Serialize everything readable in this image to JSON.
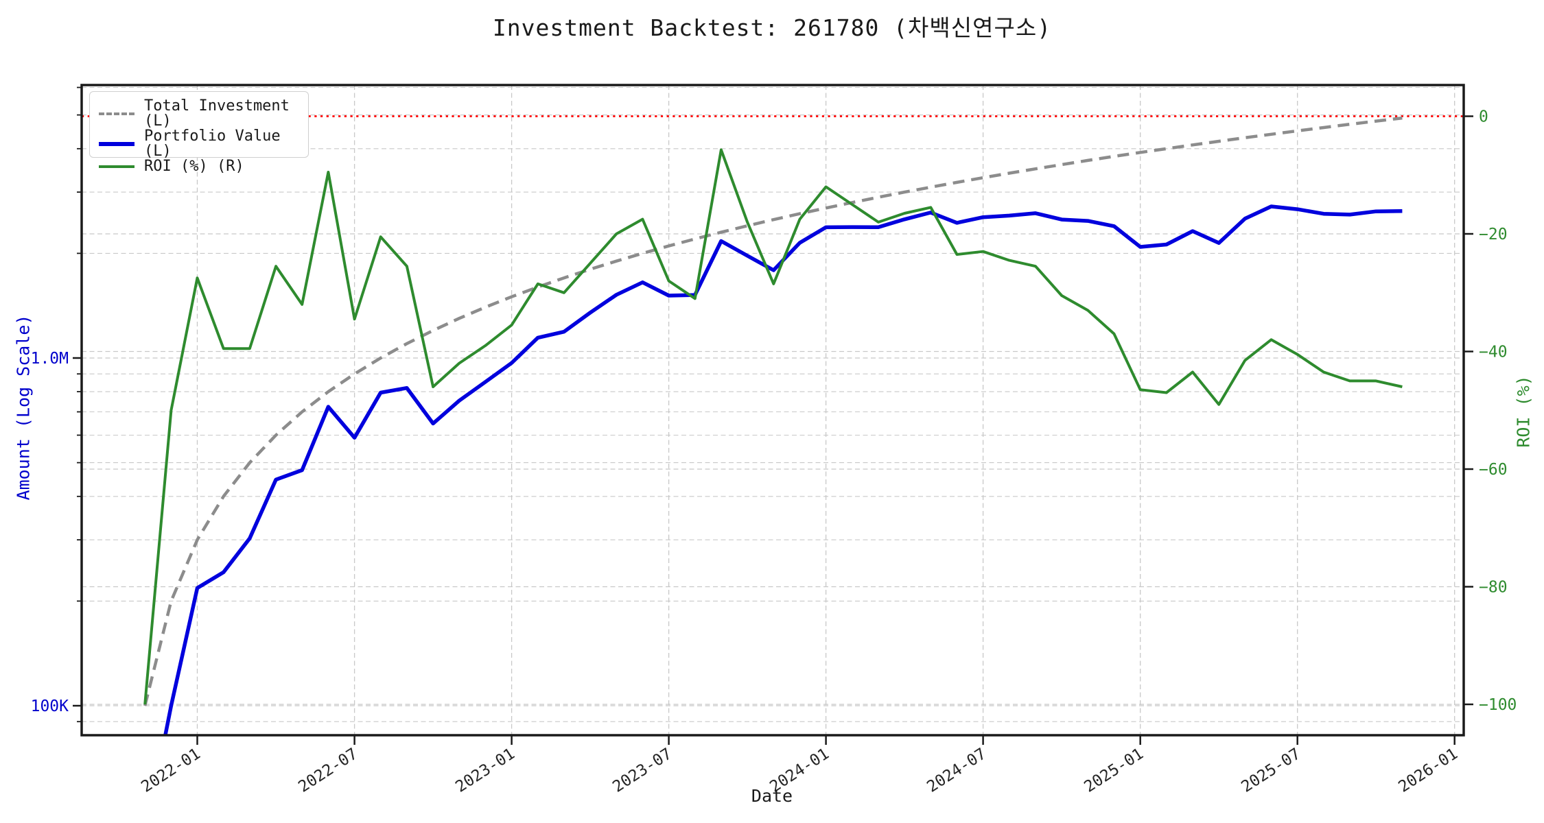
{
  "title": "Investment Backtest: 261780 (차백신연구소)",
  "axes": {
    "x": {
      "label": "Date",
      "ticks": [
        {
          "label": "2022-01",
          "month_index": 2
        },
        {
          "label": "2022-07",
          "month_index": 8
        },
        {
          "label": "2023-01",
          "month_index": 14
        },
        {
          "label": "2023-07",
          "month_index": 20
        },
        {
          "label": "2024-01",
          "month_index": 26
        },
        {
          "label": "2024-07",
          "month_index": 32
        },
        {
          "label": "2025-01",
          "month_index": 38
        },
        {
          "label": "2025-07",
          "month_index": 44
        },
        {
          "label": "2026-01",
          "month_index": 50
        }
      ]
    },
    "y_left": {
      "label": "Amount (Log Scale)",
      "color": "#0000cc",
      "scale": "log",
      "ticks": [
        {
          "label": "1.0M",
          "value_m": 1.0
        },
        {
          "label": "100K",
          "value_m": 0.1
        }
      ]
    },
    "y_right": {
      "label": "ROI (%)",
      "color": "#2e8b2e",
      "ticks": [
        {
          "label": "0",
          "value_pct": 0
        },
        {
          "label": "−20",
          "value_pct": -20
        },
        {
          "label": "−40",
          "value_pct": -40
        },
        {
          "label": "−60",
          "value_pct": -60
        },
        {
          "label": "−80",
          "value_pct": -80
        },
        {
          "label": "−100",
          "value_pct": -100
        }
      ]
    }
  },
  "legend": [
    {
      "label": "Total Investment (L)",
      "color": "#8c8c8c",
      "style": "dashed"
    },
    {
      "label": "Portfolio Value (L)",
      "color": "#0000dd",
      "style": "solid"
    },
    {
      "label": "ROI (%) (R)",
      "color": "#2e8b2e",
      "style": "solid"
    }
  ],
  "chart_data": {
    "type": "line",
    "x": [
      "2021-11",
      "2021-12",
      "2022-01",
      "2022-02",
      "2022-03",
      "2022-04",
      "2022-05",
      "2022-06",
      "2022-07",
      "2022-08",
      "2022-09",
      "2022-10",
      "2022-11",
      "2022-12",
      "2023-01",
      "2023-02",
      "2023-03",
      "2023-04",
      "2023-05",
      "2023-06",
      "2023-07",
      "2023-08",
      "2023-09",
      "2023-10",
      "2023-11",
      "2023-12",
      "2024-01",
      "2024-02",
      "2024-03",
      "2024-04",
      "2024-05",
      "2024-06",
      "2024-07",
      "2024-08",
      "2024-09",
      "2024-10",
      "2024-11",
      "2024-12",
      "2025-01",
      "2025-02",
      "2025-03",
      "2025-04",
      "2025-05",
      "2025-06",
      "2025-07",
      "2025-08",
      "2025-09",
      "2025-10",
      "2025-11"
    ],
    "series": [
      {
        "name": "Total Investment (L)",
        "axis": "left_log",
        "unit": "million",
        "style": "dashed",
        "color": "#8c8c8c",
        "values": [
          0.1,
          0.2,
          0.3,
          0.4,
          0.5,
          0.6,
          0.7,
          0.8,
          0.9,
          1.0,
          1.1,
          1.2,
          1.3,
          1.4,
          1.5,
          1.6,
          1.7,
          1.8,
          1.9,
          2.0,
          2.1,
          2.2,
          2.3,
          2.4,
          2.5,
          2.6,
          2.7,
          2.8,
          2.9,
          3.0,
          3.1,
          3.2,
          3.3,
          3.4,
          3.5,
          3.6,
          3.7,
          3.8,
          3.9,
          4.0,
          4.1,
          4.2,
          4.3,
          4.4,
          4.5,
          4.6,
          4.7,
          4.8,
          4.9
        ]
      },
      {
        "name": "Portfolio Value (L)",
        "axis": "left_log",
        "unit": "million",
        "style": "solid",
        "color": "#0000dd",
        "values": [
          0,
          0.1,
          0.218,
          0.242,
          0.303,
          0.447,
          0.476,
          0.724,
          0.59,
          0.795,
          0.82,
          0.648,
          0.754,
          0.854,
          0.968,
          1.144,
          1.19,
          1.35,
          1.52,
          1.65,
          1.512,
          1.518,
          2.169,
          1.968,
          1.788,
          2.145,
          2.376,
          2.38,
          2.378,
          2.505,
          2.62,
          2.448,
          2.541,
          2.567,
          2.608,
          2.502,
          2.479,
          2.394,
          2.087,
          2.12,
          2.317,
          2.142,
          2.516,
          2.728,
          2.678,
          2.599,
          2.585,
          2.64,
          2.646
        ]
      },
      {
        "name": "ROI (%) (R)",
        "axis": "right",
        "unit": "%",
        "style": "solid",
        "color": "#2e8b2e",
        "values": [
          -100,
          -50,
          -27.5,
          -39.5,
          -39.5,
          -25.5,
          -32,
          -9.5,
          -34.5,
          -20.5,
          -25.5,
          -46,
          -42,
          -39,
          -35.5,
          -28.5,
          -30,
          -25,
          -20,
          -17.5,
          -28,
          -31,
          -5.7,
          -18,
          -28.5,
          -17.5,
          -12,
          -15,
          -18,
          -16.5,
          -15.5,
          -23.5,
          -23,
          -24.5,
          -25.5,
          -30.5,
          -33,
          -37,
          -46.5,
          -47,
          -43.5,
          -49,
          -41.5,
          -38,
          -40.5,
          -43.5,
          -45,
          -45,
          -46
        ]
      }
    ],
    "zero_line": {
      "axis": "right",
      "value_pct": 0,
      "color": "#ff0000",
      "style": "dotted"
    },
    "grid": true,
    "left_minor_gridlines_m": [
      0.09,
      0.2,
      0.3,
      0.4,
      0.5,
      0.6,
      0.7,
      0.8,
      0.9,
      2,
      3,
      4,
      5,
      6
    ],
    "y_left_log_range_m": [
      0.082,
      6.1
    ],
    "y_right_range_pct": [
      -105.3,
      5.3
    ],
    "legend_position": "upper left"
  },
  "colors": {
    "background": "#ffffff",
    "spine": "#1a1a1a",
    "grid": "#c8c8c8",
    "x_tick_text": "#262626",
    "zero_line": "#ff0000"
  }
}
